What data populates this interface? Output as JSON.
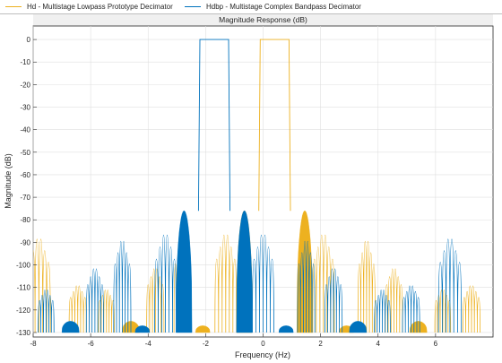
{
  "legend": {
    "items": [
      {
        "label": "Hd - Multistage Lowpass Prototype Decimator",
        "color": "#EDB120"
      },
      {
        "label": "Hdbp - Multistage Complex Bandpass Decimator",
        "color": "#0072BD"
      }
    ]
  },
  "chart_data": {
    "type": "line",
    "title": "Magnitude Response (dB)",
    "xlabel": "Frequency (Hz)",
    "ylabel": "Magnitude (dB)",
    "xlim": [
      -8,
      8
    ],
    "ylim": [
      -132,
      6
    ],
    "xticks": [
      -8,
      -6,
      -4,
      -2,
      0,
      2,
      4,
      6
    ],
    "yticks": [
      0,
      -10,
      -20,
      -30,
      -40,
      -50,
      -60,
      -70,
      -80,
      -90,
      -100,
      -110,
      -120,
      -130
    ],
    "grid": true,
    "legend_position": "top",
    "series": [
      {
        "name": "Hd - Multistage Lowpass Prototype Decimator",
        "color": "#EDB120",
        "center_hz": 0.4,
        "passband_halfwidth_hz": 0.5,
        "passband_db": 0,
        "transition_peak_db": -76,
        "lobes": [
          {
            "offset_hz": 1.05,
            "width_hz": 0.55,
            "peak_db": -76,
            "dense": true
          },
          {
            "offset_hz": 1.7,
            "width_hz": 0.75,
            "peak_db": -84,
            "dense": false
          },
          {
            "offset_hz": 2.5,
            "width_hz": 0.5,
            "peak_db": -127,
            "dense": true
          },
          {
            "offset_hz": 3.2,
            "width_hz": 0.6,
            "peak_db": -87,
            "dense": false
          },
          {
            "offset_hz": 4.15,
            "width_hz": 0.6,
            "peak_db": -100,
            "dense": false
          },
          {
            "offset_hz": 5.0,
            "width_hz": 0.6,
            "peak_db": -125,
            "dense": true
          },
          {
            "offset_hz": 5.85,
            "width_hz": 0.55,
            "peak_db": -110,
            "dense": false
          },
          {
            "offset_hz": 6.85,
            "width_hz": 0.6,
            "peak_db": -108,
            "dense": false
          },
          {
            "offset_hz": 8.2,
            "width_hz": 0.8,
            "peak_db": -86,
            "dense": false
          }
        ]
      },
      {
        "name": "Hdbp - Multistage Complex Bandpass Decimator",
        "color": "#0072BD",
        "center_hz": -1.7,
        "passband_halfwidth_hz": 0.5,
        "passband_db": 0,
        "transition_peak_db": -76,
        "lobes": [
          {
            "offset_hz": 1.05,
            "width_hz": 0.55,
            "peak_db": -76,
            "dense": true
          },
          {
            "offset_hz": 1.7,
            "width_hz": 0.75,
            "peak_db": -84,
            "dense": false
          },
          {
            "offset_hz": 2.5,
            "width_hz": 0.5,
            "peak_db": -127,
            "dense": true
          },
          {
            "offset_hz": 3.2,
            "width_hz": 0.6,
            "peak_db": -87,
            "dense": false
          },
          {
            "offset_hz": 4.15,
            "width_hz": 0.6,
            "peak_db": -100,
            "dense": false
          },
          {
            "offset_hz": 5.0,
            "width_hz": 0.6,
            "peak_db": -125,
            "dense": true
          },
          {
            "offset_hz": 5.85,
            "width_hz": 0.55,
            "peak_db": -110,
            "dense": false
          },
          {
            "offset_hz": 6.85,
            "width_hz": 0.6,
            "peak_db": -108,
            "dense": false
          },
          {
            "offset_hz": 8.2,
            "width_hz": 0.8,
            "peak_db": -86,
            "dense": false
          }
        ]
      }
    ]
  }
}
